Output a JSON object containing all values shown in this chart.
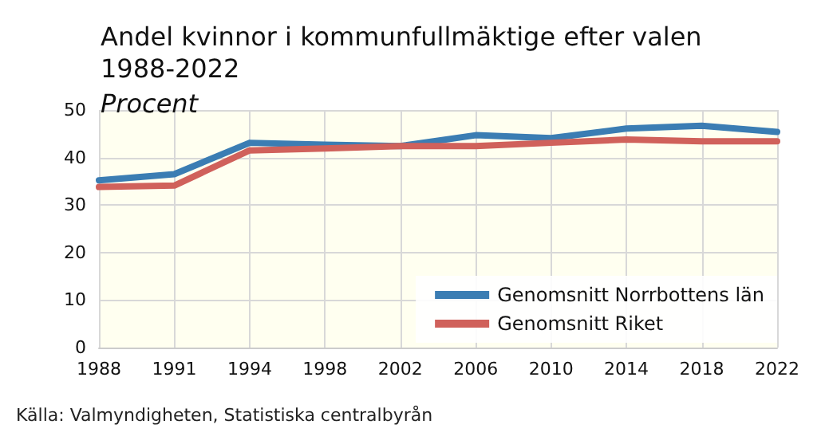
{
  "chart_data": {
    "type": "line",
    "title": "Andel kvinnor i kommunfullmäktige efter valen 1988-2022",
    "subtitle": "Procent",
    "categories": [
      "1988",
      "1991",
      "1994",
      "1998",
      "2002",
      "2006",
      "2010",
      "2014",
      "2018",
      "2022"
    ],
    "series": [
      {
        "name": "Genomsnitt Norrbottens län",
        "color": "#3b7db3",
        "values": [
          35.2,
          36.5,
          43.1,
          42.7,
          42.4,
          44.7,
          44.1,
          46.1,
          46.7,
          45.4
        ]
      },
      {
        "name": "Genomsnitt Riket",
        "color": "#d0615b",
        "values": [
          33.8,
          34.1,
          41.5,
          41.9,
          42.4,
          42.4,
          43.1,
          43.8,
          43.4,
          43.4
        ]
      }
    ],
    "ylim": [
      0,
      50
    ],
    "yticks": [
      0,
      10,
      20,
      30,
      40,
      50
    ],
    "grid": true,
    "legend": "bottom right",
    "marker": "none",
    "line_style": "solid",
    "annotations": [
      "Källa: Valmyndigheten, Statistiska centralbyrån"
    ]
  }
}
